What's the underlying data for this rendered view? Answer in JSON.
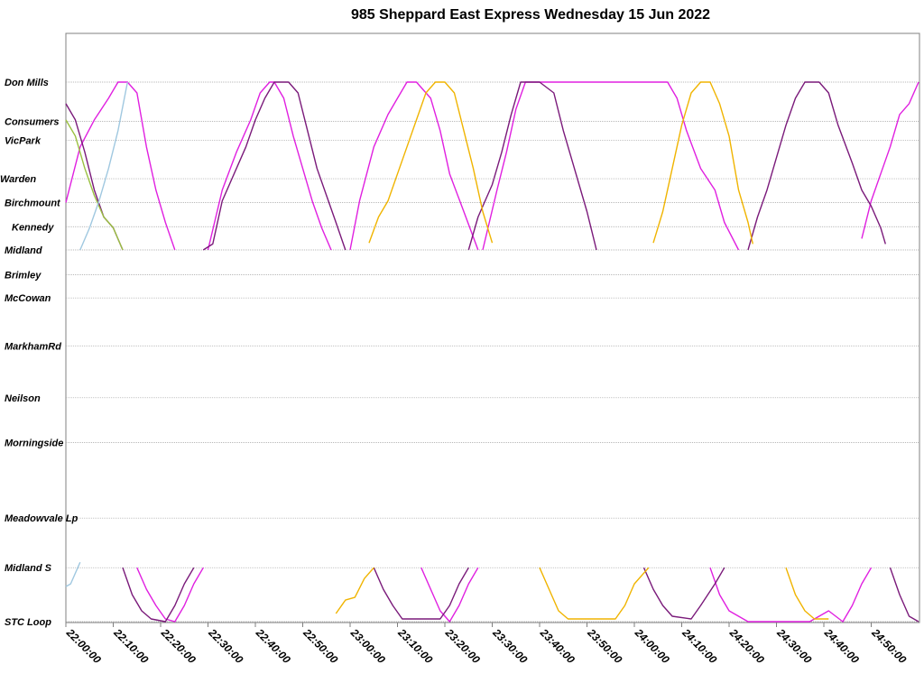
{
  "chart_data": {
    "type": "line",
    "title": "985 Sheppard East Express Wednesday 15 Jun 2022",
    "xlabel": "",
    "ylabel": "",
    "grid": "horizontal",
    "legend": "none",
    "x_unit": "minutes since 22:00:00",
    "xlim": [
      0,
      180
    ],
    "x_ticks": [
      "22:00:00",
      "22:10:00",
      "22:20:00",
      "22:30:00",
      "22:40:00",
      "22:50:00",
      "23:00:00",
      "23:10:00",
      "23:20:00",
      "23:30:00",
      "23:40:00",
      "23:50:00",
      "24:00:00",
      "24:10:00",
      "24:20:00",
      "24:30:00",
      "24:40:00",
      "24:50:00"
    ],
    "stops": [
      {
        "name": "Don Mills",
        "pos": 0.0
      },
      {
        "name": "Consumers",
        "pos": 0.0725
      },
      {
        "name": "VicPark",
        "pos": 0.108
      },
      {
        "name": "Warden",
        "pos": 0.179
      },
      {
        "name": "Birchmount",
        "pos": 0.223
      },
      {
        "name": "Kennedy",
        "pos": 0.268
      },
      {
        "name": "Midland",
        "pos": 0.311
      },
      {
        "name": "Brimley",
        "pos": 0.357
      },
      {
        "name": "McCowan",
        "pos": 0.4
      },
      {
        "name": "MarkhamRd",
        "pos": 0.489
      },
      {
        "name": "Neilson",
        "pos": 0.585
      },
      {
        "name": "Morningside",
        "pos": 0.668
      },
      {
        "name": "Meadowvale Lp",
        "pos": 0.808
      },
      {
        "name": "Midland S",
        "pos": 0.9
      },
      {
        "name": "STC Loop",
        "pos": 1.0
      }
    ],
    "series": [
      {
        "color": "#e020e0",
        "segments": [
          [
            [
              0,
              0.223
            ],
            [
              3,
              0.12
            ],
            [
              6,
              0.07
            ],
            [
              9,
              0.03
            ],
            [
              11,
              0.0
            ],
            [
              13,
              0.0
            ],
            [
              15,
              0.02
            ],
            [
              17,
              0.12
            ],
            [
              19,
              0.2
            ],
            [
              21,
              0.26
            ],
            [
              23,
              0.311
            ]
          ],
          [
            [
              30,
              0.311
            ],
            [
              33,
              0.2
            ],
            [
              36,
              0.13
            ],
            [
              39,
              0.07
            ],
            [
              41,
              0.02
            ],
            [
              43,
              0.0
            ],
            [
              44,
              0.0
            ],
            [
              46,
              0.03
            ],
            [
              48,
              0.1
            ],
            [
              50,
              0.16
            ],
            [
              52,
              0.22
            ],
            [
              54,
              0.27
            ],
            [
              56,
              0.311
            ]
          ],
          [
            [
              60,
              0.311
            ],
            [
              62,
              0.22
            ],
            [
              65,
              0.12
            ],
            [
              68,
              0.06
            ],
            [
              70,
              0.03
            ],
            [
              72,
              0.0
            ],
            [
              74,
              0.0
            ],
            [
              77,
              0.03
            ],
            [
              79,
              0.09
            ],
            [
              81,
              0.17
            ],
            [
              84,
              0.24
            ],
            [
              87,
              0.311
            ]
          ],
          [
            [
              88,
              0.311
            ],
            [
              91,
              0.2
            ],
            [
              93,
              0.13
            ],
            [
              95,
              0.05
            ],
            [
              97,
              0.0
            ],
            [
              125,
              0.0
            ],
            [
              127,
              0.0
            ],
            [
              129,
              0.03
            ],
            [
              131,
              0.09
            ],
            [
              134,
              0.16
            ],
            [
              137,
              0.2
            ],
            [
              139,
              0.26
            ],
            [
              142,
              0.311
            ]
          ],
          [
            [
              168,
              0.29
            ],
            [
              170,
              0.22
            ],
            [
              172,
              0.17
            ],
            [
              174,
              0.12
            ],
            [
              176,
              0.06
            ],
            [
              178,
              0.04
            ],
            [
              180,
              0.0
            ]
          ],
          [
            [
              15,
              0.9
            ],
            [
              17,
              0.94
            ],
            [
              19,
              0.97
            ],
            [
              21,
              0.995
            ],
            [
              23,
              1.0
            ],
            [
              25,
              0.97
            ],
            [
              27,
              0.93
            ],
            [
              29,
              0.9
            ]
          ],
          [
            [
              75,
              0.9
            ],
            [
              77,
              0.94
            ],
            [
              79,
              0.98
            ],
            [
              81,
              1.0
            ],
            [
              83,
              0.97
            ],
            [
              85,
              0.93
            ],
            [
              87,
              0.9
            ]
          ],
          [
            [
              136,
              0.9
            ],
            [
              138,
              0.95
            ],
            [
              140,
              0.98
            ],
            [
              142,
              0.99
            ],
            [
              144,
              1.0
            ],
            [
              157,
              1.0
            ],
            [
              159,
              0.99
            ],
            [
              161,
              0.98
            ],
            [
              164,
              1.0
            ],
            [
              166,
              0.97
            ],
            [
              168,
              0.93
            ],
            [
              170,
              0.9
            ]
          ]
        ]
      },
      {
        "color": "#7a1a7a",
        "segments": [
          [
            [
              0,
              0.04
            ],
            [
              2,
              0.07
            ],
            [
              4,
              0.13
            ],
            [
              6,
              0.2
            ],
            [
              8,
              0.25
            ],
            [
              10,
              0.27
            ],
            [
              12,
              0.311
            ]
          ],
          [
            [
              29,
              0.311
            ],
            [
              31,
              0.3
            ],
            [
              33,
              0.22
            ],
            [
              35,
              0.18
            ],
            [
              38,
              0.12
            ],
            [
              40,
              0.07
            ],
            [
              42,
              0.03
            ],
            [
              44,
              0.0
            ],
            [
              47,
              0.0
            ],
            [
              49,
              0.02
            ],
            [
              51,
              0.09
            ],
            [
              53,
              0.16
            ],
            [
              55,
              0.21
            ],
            [
              57,
              0.26
            ],
            [
              59,
              0.311
            ]
          ],
          [
            [
              85,
              0.311
            ],
            [
              87,
              0.25
            ],
            [
              90,
              0.19
            ],
            [
              92,
              0.13
            ],
            [
              94,
              0.06
            ],
            [
              96,
              0.0
            ],
            [
              100,
              0.0
            ],
            [
              103,
              0.02
            ],
            [
              105,
              0.09
            ],
            [
              107,
              0.15
            ],
            [
              110,
              0.24
            ],
            [
              112,
              0.311
            ]
          ],
          [
            [
              144,
              0.311
            ],
            [
              146,
              0.25
            ],
            [
              148,
              0.2
            ],
            [
              150,
              0.14
            ],
            [
              152,
              0.08
            ],
            [
              154,
              0.03
            ],
            [
              156,
              0.0
            ],
            [
              159,
              0.0
            ],
            [
              161,
              0.02
            ],
            [
              163,
              0.08
            ],
            [
              166,
              0.15
            ],
            [
              168,
              0.2
            ],
            [
              170,
              0.23
            ],
            [
              172,
              0.27
            ],
            [
              173,
              0.3
            ]
          ],
          [
            [
              12,
              0.9
            ],
            [
              14,
              0.95
            ],
            [
              16,
              0.98
            ],
            [
              18,
              0.995
            ],
            [
              21,
              1.0
            ],
            [
              23,
              0.97
            ],
            [
              25,
              0.93
            ],
            [
              27,
              0.9
            ]
          ],
          [
            [
              65,
              0.9
            ],
            [
              67,
              0.94
            ],
            [
              69,
              0.97
            ],
            [
              71,
              0.995
            ],
            [
              79,
              0.995
            ],
            [
              81,
              0.97
            ],
            [
              83,
              0.93
            ],
            [
              85,
              0.9
            ]
          ],
          [
            [
              122,
              0.9
            ],
            [
              124,
              0.94
            ],
            [
              126,
              0.97
            ],
            [
              128,
              0.99
            ],
            [
              132,
              0.995
            ],
            [
              134,
              0.97
            ],
            [
              137,
              0.93
            ],
            [
              139,
              0.9
            ]
          ],
          [
            [
              174,
              0.9
            ],
            [
              176,
              0.95
            ],
            [
              178,
              0.99
            ],
            [
              180,
              1.0
            ]
          ]
        ]
      },
      {
        "color": "#f0b400",
        "segments": [
          [
            [
              64,
              0.298
            ],
            [
              66,
              0.25
            ],
            [
              68,
              0.22
            ],
            [
              70,
              0.17
            ],
            [
              72,
              0.12
            ],
            [
              74,
              0.07
            ],
            [
              76,
              0.02
            ],
            [
              78,
              0.0
            ],
            [
              80,
              0.0
            ],
            [
              82,
              0.02
            ],
            [
              84,
              0.09
            ],
            [
              86,
              0.16
            ],
            [
              88,
              0.24
            ],
            [
              90,
              0.298
            ]
          ],
          [
            [
              124,
              0.298
            ],
            [
              126,
              0.24
            ],
            [
              128,
              0.16
            ],
            [
              130,
              0.08
            ],
            [
              132,
              0.02
            ],
            [
              134,
              0.0
            ],
            [
              136,
              0.0
            ],
            [
              138,
              0.04
            ],
            [
              140,
              0.1
            ],
            [
              142,
              0.2
            ],
            [
              144,
              0.26
            ],
            [
              145,
              0.3
            ]
          ],
          [
            [
              57,
              0.985
            ],
            [
              59,
              0.96
            ],
            [
              61,
              0.955
            ],
            [
              63,
              0.92
            ],
            [
              65,
              0.9
            ]
          ],
          [
            [
              100,
              0.9
            ],
            [
              102,
              0.94
            ],
            [
              104,
              0.98
            ],
            [
              106,
              0.995
            ],
            [
              116,
              0.995
            ],
            [
              118,
              0.97
            ],
            [
              120,
              0.93
            ],
            [
              123,
              0.9
            ]
          ],
          [
            [
              152,
              0.9
            ],
            [
              154,
              0.95
            ],
            [
              156,
              0.98
            ],
            [
              158,
              0.995
            ],
            [
              161,
              0.995
            ]
          ]
        ]
      },
      {
        "color": "#9ac040",
        "segments": [
          [
            [
              0,
              0.07
            ],
            [
              2,
              0.1
            ],
            [
              4,
              0.16
            ],
            [
              6,
              0.21
            ],
            [
              8,
              0.25
            ],
            [
              10,
              0.27
            ],
            [
              12,
              0.311
            ]
          ]
        ]
      },
      {
        "color": "#a0c8e0",
        "segments": [
          [
            [
              3,
              0.311
            ],
            [
              5,
              0.27
            ],
            [
              7,
              0.22
            ],
            [
              9,
              0.16
            ],
            [
              11,
              0.09
            ],
            [
              13,
              0.0
            ]
          ],
          [
            [
              0,
              0.935
            ],
            [
              1,
              0.93
            ],
            [
              3,
              0.89
            ]
          ]
        ]
      }
    ]
  }
}
